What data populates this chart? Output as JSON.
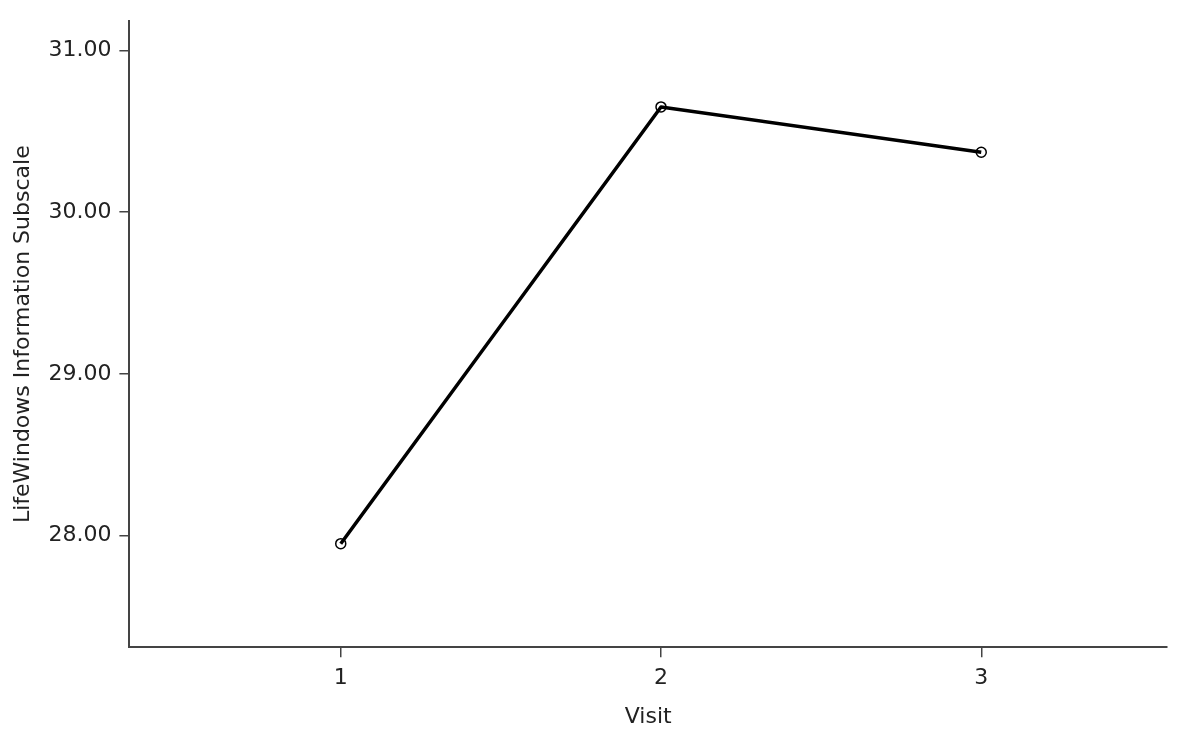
{
  "chart_data": {
    "type": "line",
    "xlabel": "Visit",
    "ylabel": "LifeWindows Information Subscale",
    "x": [
      1,
      2,
      3
    ],
    "xlim": [
      0.34,
      3.58
    ],
    "xticks": [
      1,
      2,
      3
    ],
    "ylim": [
      27.31,
      31.18
    ],
    "yticks": [
      {
        "value": 28,
        "label": "28.00"
      },
      {
        "value": 29,
        "label": "29.00"
      },
      {
        "value": 30,
        "label": "30.00"
      },
      {
        "value": 31,
        "label": "31.00"
      }
    ],
    "series": [
      {
        "color": "#000000",
        "values": [
          27.95,
          30.65,
          30.37
        ]
      }
    ],
    "marker": "circle",
    "line_style": "solid",
    "grid": false,
    "legend": false
  }
}
